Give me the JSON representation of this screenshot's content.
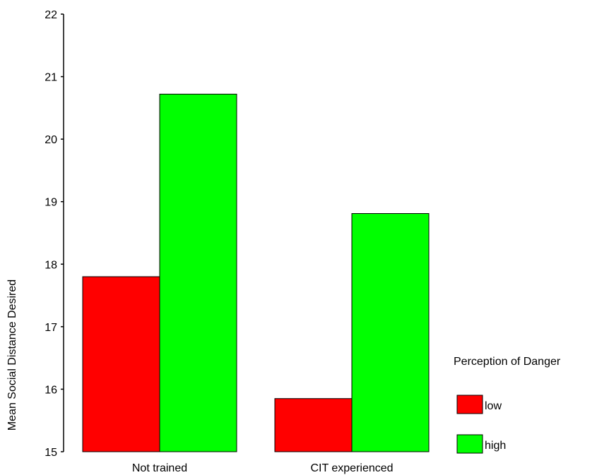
{
  "chart_data": {
    "type": "bar",
    "title": "",
    "xlabel": "",
    "ylabel": "Mean Social Distance Desired",
    "ylim": [
      15,
      22
    ],
    "yticks": [
      15,
      16,
      17,
      18,
      19,
      20,
      21,
      22
    ],
    "grid": false,
    "categories": [
      "Not trained",
      "CIT experienced"
    ],
    "series": [
      {
        "name": "low",
        "color": "#ff0000",
        "values": [
          17.8,
          15.85
        ]
      },
      {
        "name": "high",
        "color": "#00ff00",
        "values": [
          20.72,
          18.81
        ]
      }
    ],
    "legend": {
      "title": "Perception of Danger",
      "position": "right"
    }
  }
}
